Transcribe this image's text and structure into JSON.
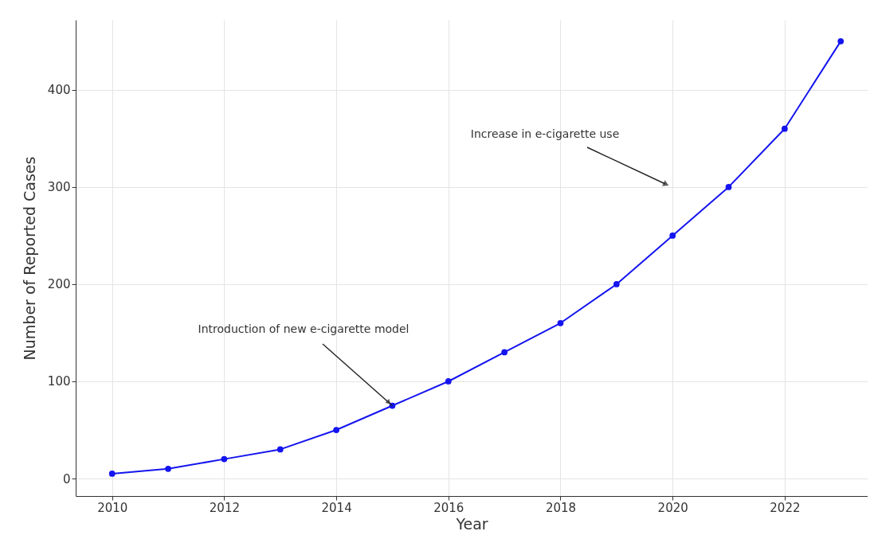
{
  "chart_data": {
    "type": "line",
    "xlabel": "Year",
    "ylabel": "Number of Reported Cases",
    "x": [
      2010,
      2011,
      2012,
      2013,
      2014,
      2015,
      2016,
      2017,
      2018,
      2019,
      2020,
      2021,
      2022,
      2023
    ],
    "series": [
      {
        "color": "#1414f0",
        "values": [
          5,
          10,
          20,
          30,
          50,
          75,
          100,
          130,
          160,
          200,
          250,
          300,
          360,
          450
        ]
      }
    ],
    "xlim": [
      2009.35,
      2023.48
    ],
    "xticks": [
      2010,
      2012,
      2014,
      2016,
      2018,
      2020,
      2022
    ],
    "ylim": [
      -18,
      472
    ],
    "yticks": [
      0,
      100,
      200,
      300,
      400
    ],
    "grid": true,
    "marker": "circle",
    "line_style": "solid",
    "annotations": [
      {
        "text": "Introduction of new e-cigarette model",
        "x": 2015,
        "y": 75
      },
      "Increase in e-cigarette use"
    ]
  }
}
